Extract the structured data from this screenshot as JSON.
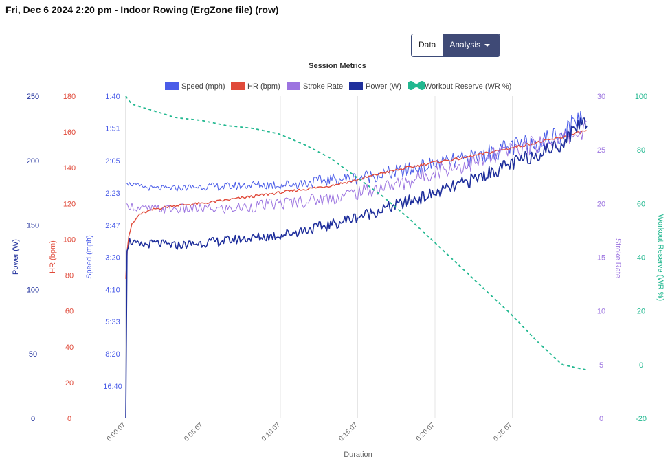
{
  "header": {
    "title": "Fri, Dec 6 2024 2:20 pm - Indoor Rowing (ErgZone file) (row)"
  },
  "view_toggle": {
    "data_label": "Data",
    "analysis_label": "Analysis"
  },
  "colors": {
    "speed": "#4a5ce8",
    "hr": "#e04a3a",
    "stroke": "#9c74e0",
    "power": "#1f2f9c",
    "wr": "#22b890",
    "grid": "#e6e6e6"
  },
  "chart_data": {
    "type": "line",
    "title": "Session Metrics",
    "xlabel": "Duration",
    "x_ticks": [
      "0:00:07",
      "0:05:07",
      "0:10:07",
      "0:15:07",
      "0:20:07",
      "0:25:07"
    ],
    "x_range_seconds": [
      7,
      1807
    ],
    "legend_position": "top",
    "grid": "vertical",
    "axes": [
      {
        "id": "power",
        "label": "Power (W)",
        "side": "left",
        "range": [
          0,
          250
        ],
        "ticks": [
          "0",
          "50",
          "100",
          "150",
          "200",
          "250"
        ]
      },
      {
        "id": "hr",
        "label": "HR (bpm)",
        "side": "left",
        "range": [
          0,
          180
        ],
        "ticks": [
          "0",
          "20",
          "40",
          "60",
          "80",
          "100",
          "120",
          "140",
          "160",
          "180"
        ]
      },
      {
        "id": "speed",
        "label": "Speed (mph)",
        "side": "left",
        "scale": "pace",
        "ticks": [
          "1:40",
          "1:51",
          "2:05",
          "2:23",
          "2:47",
          "3:20",
          "4:10",
          "5:33",
          "8:20",
          "16:40"
        ]
      },
      {
        "id": "stroke",
        "label": "Stroke Rate",
        "side": "right",
        "range": [
          0,
          30
        ],
        "ticks": [
          "0",
          "5",
          "10",
          "15",
          "20",
          "25",
          "30"
        ]
      },
      {
        "id": "wr",
        "label": "Workout Reserve (WR %)",
        "side": "right",
        "range": [
          -20,
          100
        ],
        "ticks": [
          "-20",
          "0",
          "20",
          "40",
          "60",
          "80",
          "100"
        ]
      }
    ],
    "series": [
      {
        "id": "speed",
        "name": "Speed (mph)",
        "axis": "speed",
        "x": [
          7,
          40,
          100,
          200,
          300,
          400,
          500,
          600,
          700,
          800,
          900,
          1000,
          1100,
          1200,
          1300,
          1400,
          1500,
          1600,
          1700,
          1780
        ],
        "pace": [
          "2:17",
          "2:18",
          "2:20",
          "2:20",
          "2:19",
          "2:19",
          "2:18",
          "2:18",
          "2:17",
          "2:15",
          "2:14",
          "2:12",
          "2:10",
          "2:07",
          "2:05",
          "2:02",
          "1:59",
          "1:57",
          "1:53",
          "1:46"
        ]
      },
      {
        "id": "hr",
        "name": "HR (bpm)",
        "axis": "hr",
        "x": [
          7,
          15,
          30,
          60,
          120,
          200,
          300,
          400,
          500,
          600,
          700,
          800,
          900,
          1000,
          1100,
          1200,
          1300,
          1400,
          1500,
          1600,
          1700,
          1800
        ],
        "values": [
          78,
          100,
          108,
          114,
          117,
          119,
          120,
          122,
          124,
          126,
          128,
          130,
          133,
          137,
          140,
          143,
          145,
          148,
          151,
          154,
          157,
          161
        ]
      },
      {
        "id": "stroke",
        "name": "Stroke Rate",
        "axis": "stroke",
        "x": [
          7,
          60,
          200,
          400,
          600,
          800,
          900,
          1000,
          1100,
          1200,
          1300,
          1400,
          1500,
          1600,
          1700,
          1800
        ],
        "values": [
          20,
          19.5,
          19.5,
          19.5,
          20,
          20.5,
          21,
          21.5,
          22,
          23,
          23.5,
          24,
          25,
          25.5,
          26,
          27
        ]
      },
      {
        "id": "power",
        "name": "Power (W)",
        "axis": "power",
        "x": [
          7,
          12,
          20,
          60,
          120,
          200,
          300,
          400,
          500,
          600,
          700,
          800,
          900,
          1000,
          1100,
          1200,
          1300,
          1400,
          1500,
          1600,
          1700,
          1780,
          1800
        ],
        "values": [
          0,
          130,
          138,
          134,
          136,
          134,
          136,
          138,
          140,
          142,
          146,
          150,
          156,
          162,
          168,
          174,
          181,
          189,
          197,
          205,
          213,
          232,
          226
        ]
      },
      {
        "id": "wr",
        "name": "Workout Reserve (WR %)",
        "axis": "wr",
        "x": [
          7,
          30,
          100,
          200,
          300,
          400,
          500,
          600,
          700,
          800,
          900,
          1000,
          1100,
          1200,
          1300,
          1400,
          1500,
          1600,
          1700,
          1800
        ],
        "values": [
          100,
          97,
          95,
          92,
          91,
          89,
          88,
          86,
          82,
          77,
          70,
          63,
          55,
          46,
          37,
          28,
          19,
          9,
          0,
          -2
        ]
      }
    ]
  }
}
